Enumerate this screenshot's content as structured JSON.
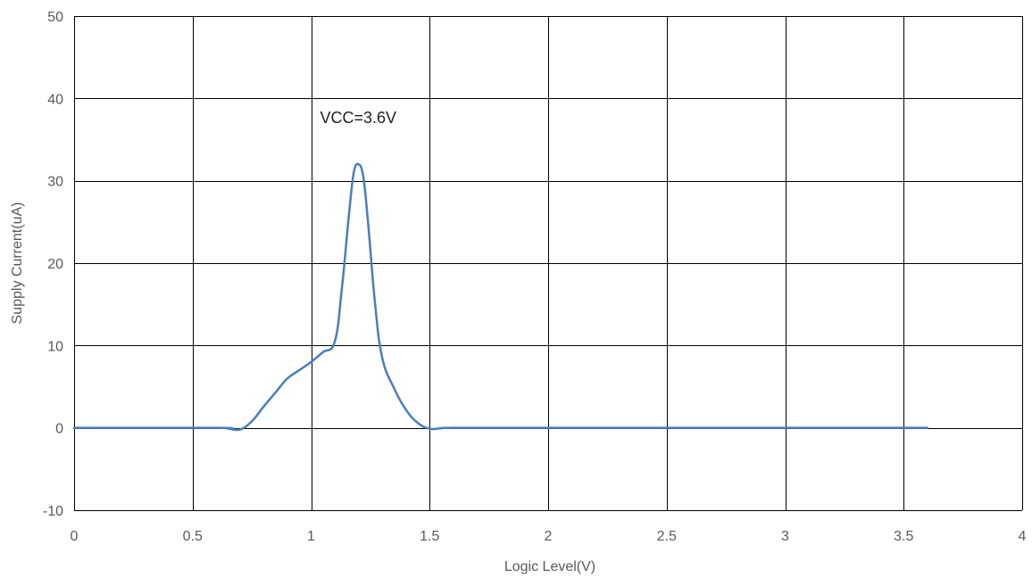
{
  "chart_data": {
    "type": "line",
    "title": "",
    "xlabel": "Logic Level(V)",
    "ylabel": "Supply Current(uA)",
    "xlim": [
      0,
      4
    ],
    "ylim": [
      -10,
      50
    ],
    "xticks": [
      0,
      0.5,
      1,
      1.5,
      2,
      2.5,
      3,
      3.5,
      4
    ],
    "xtick_labels": [
      "0",
      "0.5",
      "1",
      "1.5",
      "2",
      "2.5",
      "3",
      "3.5",
      "4"
    ],
    "yticks": [
      -10,
      0,
      10,
      20,
      30,
      40,
      50
    ],
    "ytick_labels": [
      "-10",
      "0",
      "10",
      "20",
      "30",
      "40",
      "50"
    ],
    "grid": true,
    "legend": "none",
    "annotations": [
      {
        "text": "VCC=3.6V",
        "x": 1.0,
        "y": 37
      }
    ],
    "series": [
      {
        "color": "#4a7ebb",
        "x": [
          0,
          0.6,
          0.65,
          0.7,
          0.75,
          0.8,
          0.85,
          0.9,
          0.95,
          1.0,
          1.05,
          1.1,
          1.13,
          1.16,
          1.18,
          1.2,
          1.22,
          1.24,
          1.27,
          1.3,
          1.35,
          1.4,
          1.45,
          1.5,
          1.55,
          1.6,
          2.0,
          2.5,
          3.0,
          3.6
        ],
        "y": [
          0,
          0,
          -0.1,
          -0.2,
          0.8,
          2.6,
          4.3,
          6.0,
          7.0,
          8.0,
          9.2,
          10.5,
          17.0,
          26.0,
          31.0,
          32.0,
          30.5,
          25.0,
          15.0,
          8.5,
          4.8,
          2.2,
          0.6,
          -0.1,
          -0.05,
          0,
          0,
          0,
          0,
          0
        ]
      }
    ]
  }
}
